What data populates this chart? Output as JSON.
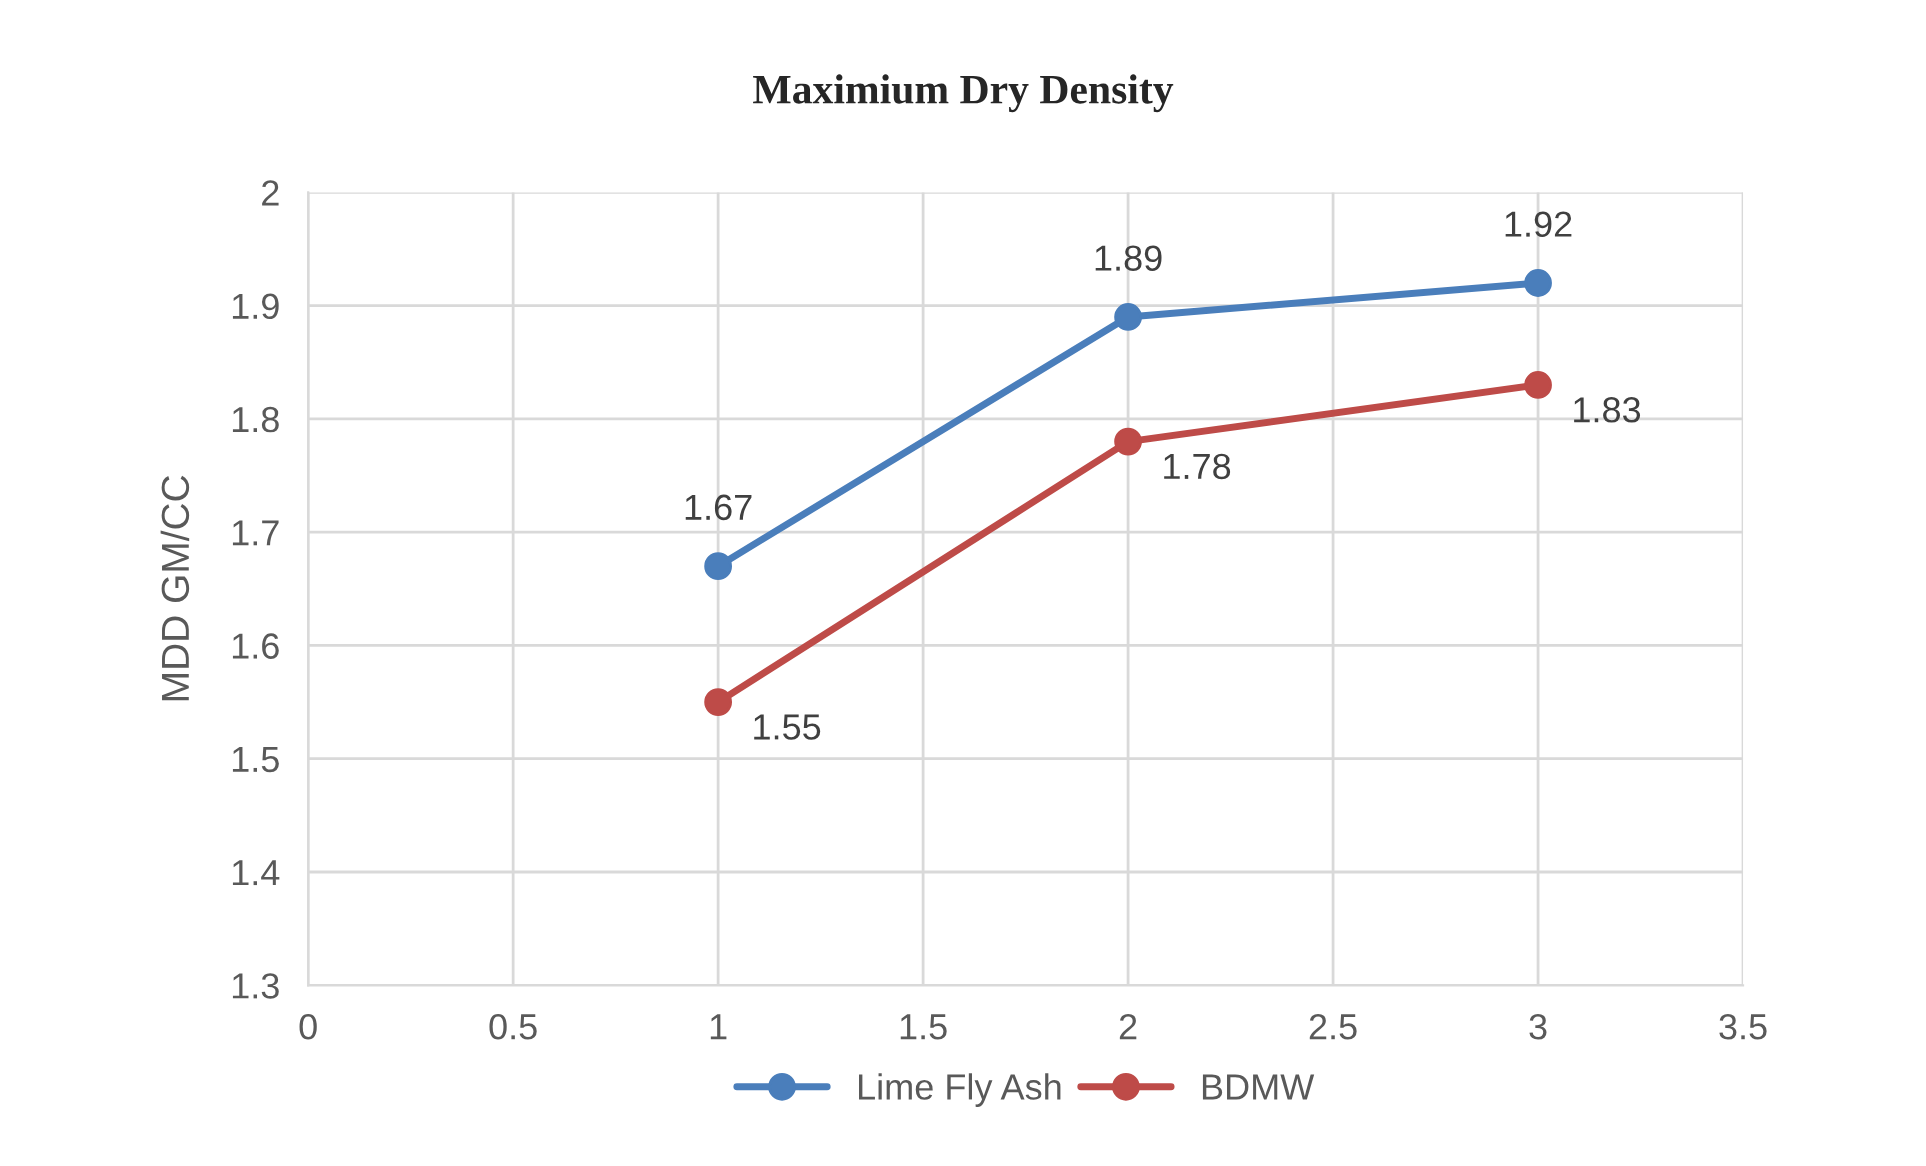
{
  "chart_data": {
    "type": "line",
    "title": "Maximium Dry Density",
    "ylabel": "MDD GM/CC",
    "x": [
      1,
      2,
      3
    ],
    "series": [
      {
        "name": "Lime Fly Ash",
        "color": "#4a7ebb",
        "values": [
          1.67,
          1.89,
          1.92
        ]
      },
      {
        "name": "BDMW",
        "color": "#be4b48",
        "values": [
          1.55,
          1.78,
          1.83
        ]
      }
    ],
    "xlim": [
      0,
      3.5
    ],
    "xticks": [
      0,
      0.5,
      1,
      1.5,
      2,
      2.5,
      3,
      3.5
    ],
    "ylim": [
      1.3,
      2
    ],
    "yticks": [
      1.3,
      1.4,
      1.5,
      1.6,
      1.7,
      1.8,
      1.9,
      2
    ],
    "grid": true,
    "legend": "bottom",
    "marker": "circle",
    "line_style": "solid",
    "data_labels": true
  }
}
